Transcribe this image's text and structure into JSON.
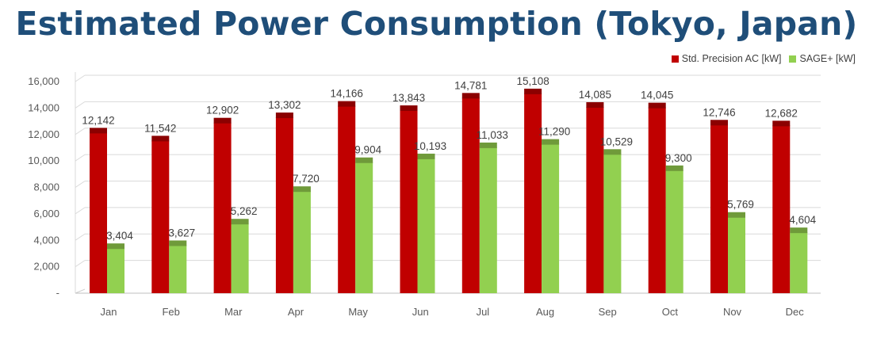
{
  "chart_data": {
    "type": "bar",
    "title": "Estimated Power Consumption (Tokyo, Japan)",
    "categories": [
      "Jan",
      "Feb",
      "Mar",
      "Apr",
      "May",
      "Jun",
      "Jul",
      "Aug",
      "Sep",
      "Oct",
      "Nov",
      "Dec"
    ],
    "series": [
      {
        "name": "Std. Precision AC [kW]",
        "color": "#c00000",
        "values": [
          12142,
          11542,
          12902,
          13302,
          14166,
          13843,
          14781,
          15108,
          14085,
          14045,
          12746,
          12682
        ],
        "labels": [
          "12,142",
          "11,542",
          "12,902",
          "13,302",
          "14,166",
          "13,843",
          "14,781",
          "15,108",
          "14,085",
          "14,045",
          "12,746",
          "12,682"
        ]
      },
      {
        "name": "SAGE+ [kW]",
        "color": "#92d050",
        "values": [
          3404,
          3627,
          5262,
          7720,
          9904,
          10193,
          11033,
          11290,
          10529,
          9300,
          5769,
          4604
        ],
        "labels": [
          "3,404",
          "3,627",
          "5,262",
          "7,720",
          "9,904",
          "10,193",
          "11,033",
          "11,290",
          "10,529",
          "9,300",
          "5,769",
          "4,604"
        ]
      }
    ],
    "y_ticks": [
      "-",
      "2,000",
      "4,000",
      "6,000",
      "8,000",
      "10,000",
      "12,000",
      "14,000",
      "16,000"
    ],
    "ylim": [
      0,
      16000
    ],
    "legend_position": "top-right",
    "grid": true
  }
}
